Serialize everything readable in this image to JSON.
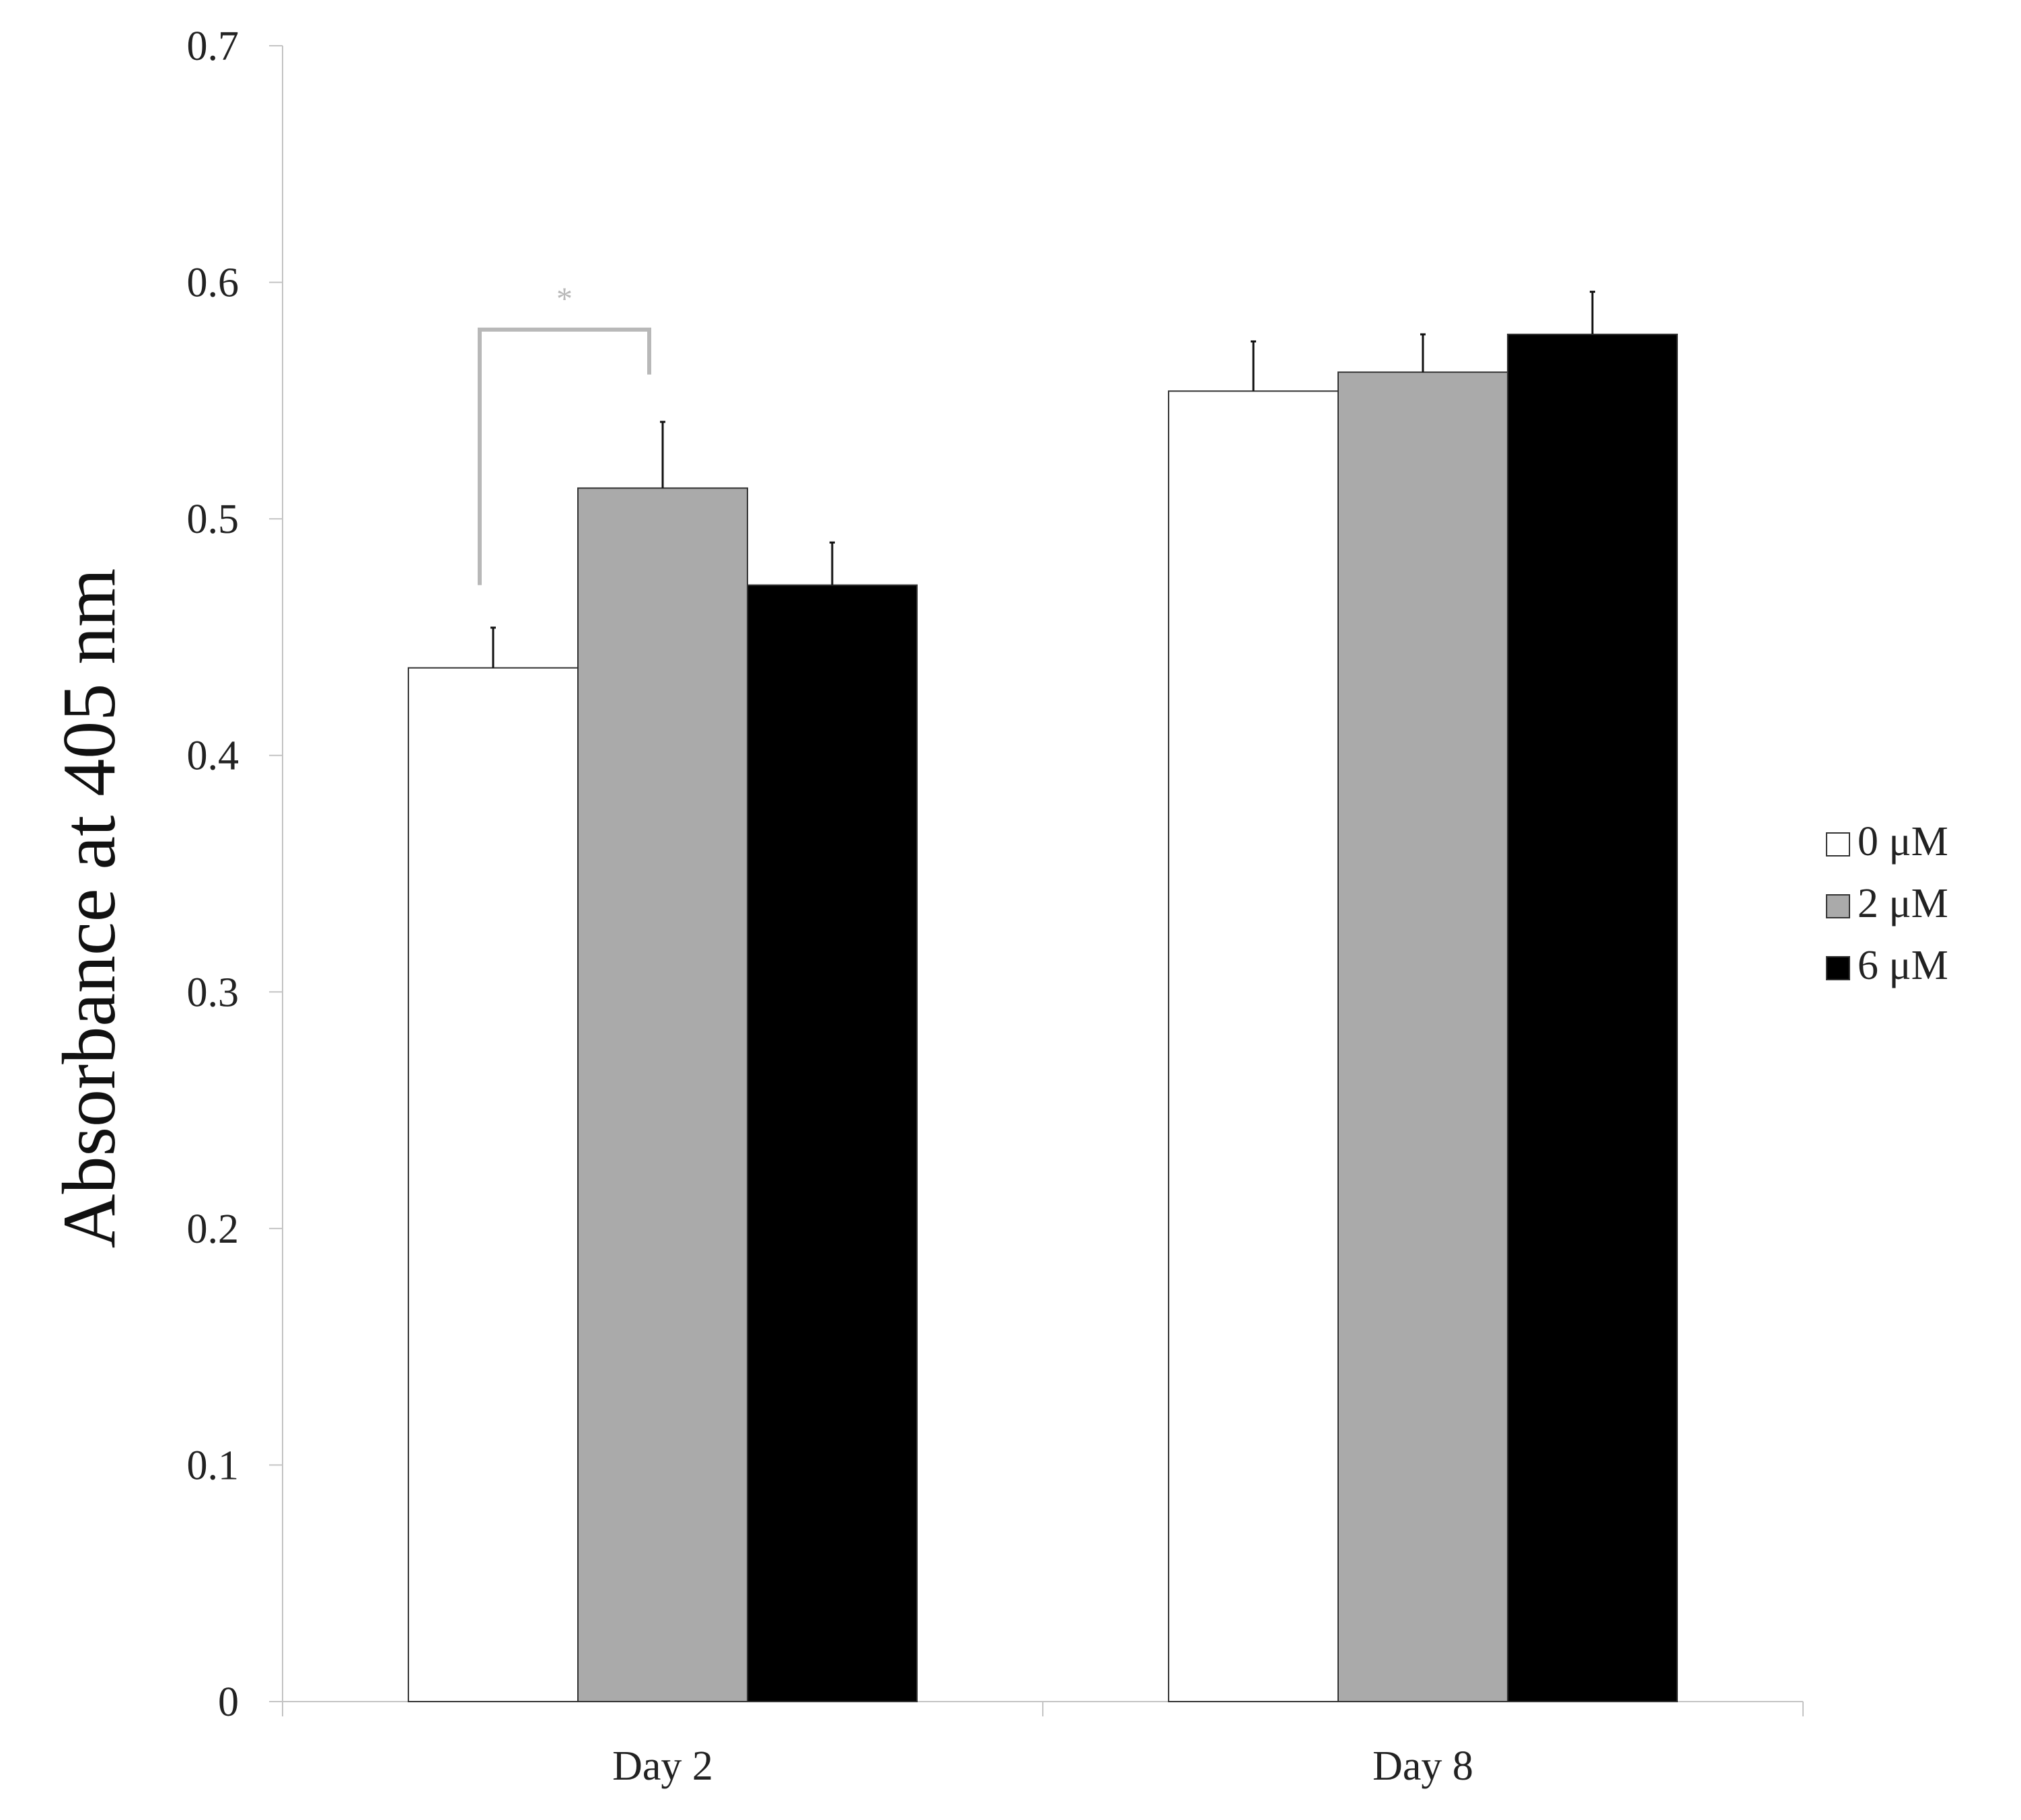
{
  "chart_data": {
    "type": "bar",
    "ylabel": "Absorbance at 405 nm",
    "xlabel": "",
    "ylim": [
      0,
      0.7
    ],
    "yticks": [
      "0",
      "0.1",
      "0.2",
      "0.3",
      "0.4",
      "0.5",
      "0.6",
      "0.7"
    ],
    "categories": [
      "Day 2",
      "Day 8"
    ],
    "series": [
      {
        "name": "0 μM",
        "color": "#ffffff",
        "values": [
          0.437,
          0.554
        ],
        "errors": [
          0.017,
          0.021
        ]
      },
      {
        "name": "2 μM",
        "color": "#aaaaaa",
        "values": [
          0.513,
          0.562
        ],
        "errors": [
          0.028,
          0.016
        ]
      },
      {
        "name": "6 μM",
        "color": "#000000",
        "values": [
          0.472,
          0.578
        ],
        "errors": [
          0.018,
          0.018
        ]
      }
    ],
    "legend_position": "right",
    "grid": false,
    "annotations": [
      {
        "text": "*",
        "category": "Day 2",
        "from_series": 0,
        "to_series": 1,
        "bracket_top": 0.58,
        "left_bottom": 0.472,
        "right_bottom": 0.561,
        "color": "#b8b8b8"
      }
    ]
  }
}
